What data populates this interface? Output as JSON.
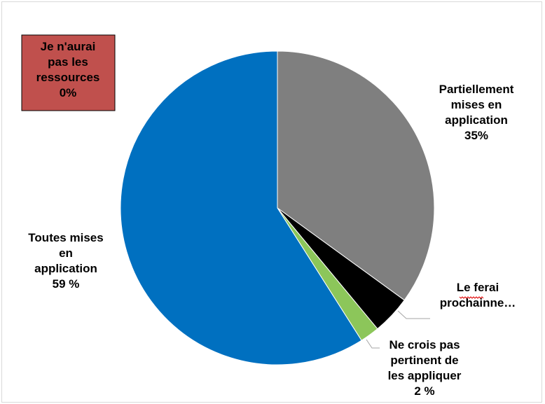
{
  "chart_data": {
    "type": "pie",
    "slices": [
      {
        "label_lines": [
          "Partiellement",
          "mises en",
          "application",
          "35%"
        ],
        "value": 35,
        "color": "#7f7f7f"
      },
      {
        "label_lines": [
          "Le ferai",
          "prochainne…"
        ],
        "value": 4,
        "color": "#000000"
      },
      {
        "label_lines": [
          "Ne crois pas",
          "pertinent de",
          "les appliquer",
          "2 %"
        ],
        "value": 2,
        "color": "#8cc65a"
      },
      {
        "label_lines": [
          "Toutes mises",
          "en",
          "application",
          "59 %"
        ],
        "value": 59,
        "color": "#0070c0"
      },
      {
        "label_lines": [
          "Je n'aurai",
          "pas les",
          "ressources",
          "0%"
        ],
        "value": 0,
        "color": "#c0504d"
      }
    ],
    "start_angle_deg": 0,
    "direction": "clockwise",
    "legend": "none"
  }
}
